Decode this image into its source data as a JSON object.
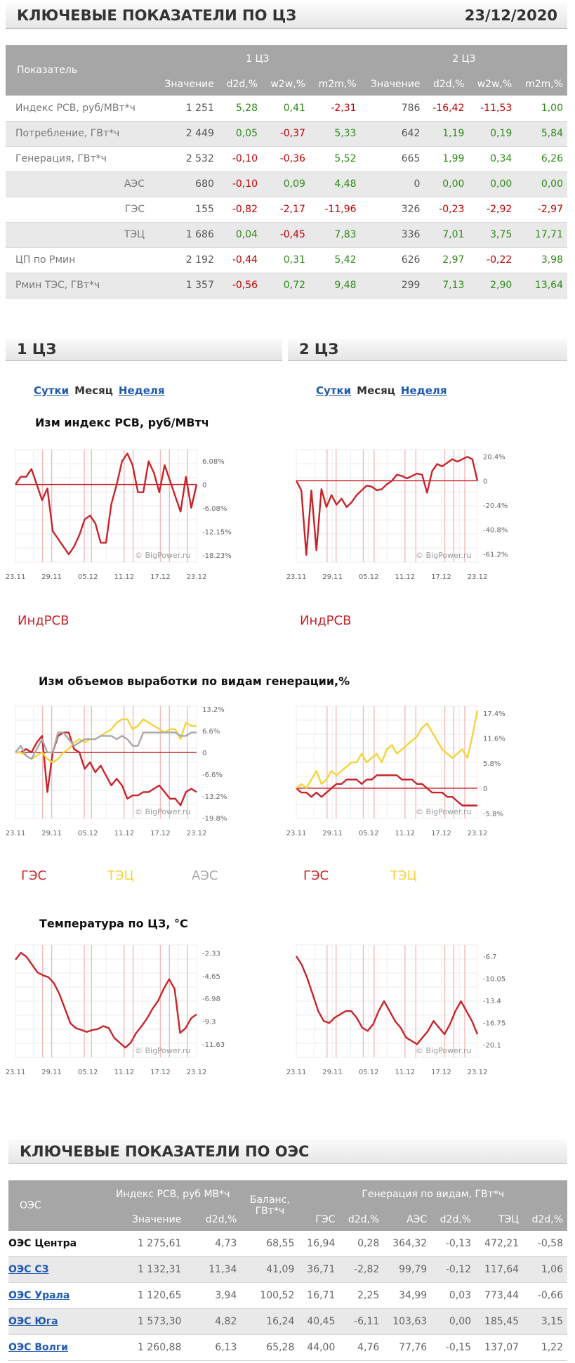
{
  "header": {
    "title": "КЛЮЧЕВЫЕ ПОКАЗАТЕЛИ ПО ЦЗ",
    "date": "23/12/2020"
  },
  "key_table": {
    "col_indicator": "Показатель",
    "zone1": "1 ЦЗ",
    "zone2": "2 ЦЗ",
    "subcols": [
      "Значение",
      "d2d,%",
      "w2w,%",
      "m2m,%",
      "Значение",
      "d2d,%",
      "w2w,%",
      "m2m,%"
    ],
    "rows": [
      {
        "name": "Индекс РСВ, руб/МВт*ч",
        "sub": false,
        "v": [
          "1 251",
          "5,28",
          "0,41",
          "-2,31",
          "786",
          "-16,42",
          "-11,53",
          "1,00"
        ]
      },
      {
        "name": "Потребление, ГВт*ч",
        "sub": false,
        "v": [
          "2 449",
          "0,05",
          "-0,37",
          "5,33",
          "642",
          "1,19",
          "0,19",
          "5,84"
        ]
      },
      {
        "name": "Генерация, ГВт*ч",
        "sub": false,
        "v": [
          "2 532",
          "-0,10",
          "-0,36",
          "5,52",
          "665",
          "1,99",
          "0,34",
          "6,26"
        ]
      },
      {
        "name": "АЭС",
        "sub": true,
        "v": [
          "680",
          "-0,10",
          "0,09",
          "4,48",
          "0",
          "0,00",
          "0,00",
          "0,00"
        ]
      },
      {
        "name": "ГЭС",
        "sub": true,
        "v": [
          "155",
          "-0,82",
          "-2,17",
          "-11,96",
          "326",
          "-0,23",
          "-2,92",
          "-2,97"
        ]
      },
      {
        "name": "ТЭЦ",
        "sub": true,
        "v": [
          "1 686",
          "0,04",
          "-0,45",
          "7,83",
          "336",
          "7,01",
          "3,75",
          "17,71"
        ]
      },
      {
        "name": "ЦП по Рмин",
        "sub": false,
        "v": [
          "2 192",
          "-0,44",
          "0,31",
          "5,42",
          "626",
          "2,97",
          "-0,22",
          "3,98"
        ]
      },
      {
        "name": "Рмин ТЭС, ГВт*ч",
        "sub": false,
        "v": [
          "1 357",
          "-0,56",
          "0,72",
          "9,48",
          "299",
          "7,13",
          "2,90",
          "13,64"
        ]
      }
    ]
  },
  "sections": {
    "z1": "1 ЦЗ",
    "z2": "2 ЦЗ"
  },
  "tabs": {
    "day": "Сутки",
    "month": "Месяц",
    "week": "Неделя"
  },
  "chart_titles": {
    "rsv": "Изм индекс РСВ, руб/МВтч",
    "gen": "Изм объемов выработки по видам генерации,%",
    "temp": "Температура по ЦЗ, °C"
  },
  "watermark": "© BigPower.ru",
  "colors": {
    "red": "#c8232a",
    "yellow": "#f5d33a",
    "gray": "#a8a8a8",
    "vline": "#f2b6b6"
  },
  "legends": {
    "rsv": "ИндРСВ",
    "ges": "ГЭС",
    "tec": "ТЭЦ",
    "aes": "АЭС"
  },
  "chart_data": [
    {
      "id": "rsv1",
      "type": "line",
      "x_ticks": [
        "23.11",
        "29.11",
        "05.12",
        "11.12",
        "17.12",
        "23.12"
      ],
      "y_ticks": [
        "6.08%",
        "0",
        "-6.08%",
        "-12.15%",
        "-18.23%"
      ],
      "ylim": [
        -20,
        9
      ],
      "series": [
        {
          "name": "ИндРСВ",
          "values": [
            0,
            2,
            2,
            4,
            0,
            -4,
            -1,
            -12,
            -14,
            -16,
            -18,
            -16,
            -13,
            -9,
            -8,
            -10,
            -15,
            -15,
            -5,
            0,
            6,
            8,
            5,
            -2,
            -2,
            6,
            3,
            -2,
            5,
            1,
            -3,
            -7,
            2,
            -6,
            0
          ]
        }
      ]
    },
    {
      "id": "rsv2",
      "type": "line",
      "x_ticks": [
        "23.11",
        "29.11",
        "05.12",
        "11.12",
        "17.12",
        "23.12"
      ],
      "y_ticks": [
        "20.4%",
        "0",
        "-20.4%",
        "-40.8%",
        "-61.2%"
      ],
      "ylim": [
        -68,
        26
      ],
      "series": [
        {
          "name": "ИндРСВ",
          "values": [
            0,
            -8,
            -62,
            -8,
            -58,
            -7,
            -22,
            -12,
            -20,
            -15,
            -22,
            -18,
            -12,
            -8,
            -4,
            -5,
            -8,
            -7,
            -3,
            0,
            5,
            4,
            2,
            4,
            6,
            5,
            -10,
            8,
            14,
            12,
            15,
            18,
            16,
            18,
            20,
            18,
            0
          ]
        }
      ]
    },
    {
      "id": "gen1",
      "type": "line",
      "x_ticks": [
        "23.11",
        "29.11",
        "05.12",
        "11.12",
        "17.12",
        "23.12"
      ],
      "y_ticks": [
        "13.2%",
        "6.6%",
        "0",
        "-6.6%",
        "-13.2%",
        "-19.8%"
      ],
      "ylim": [
        -20,
        14
      ],
      "series": [
        {
          "name": "ГЭС",
          "values": [
            0,
            0,
            1,
            0,
            3,
            5,
            -12,
            0,
            5,
            6,
            6,
            1,
            0,
            -5,
            -3,
            -6,
            -4,
            -7,
            -10,
            -8,
            -10,
            -14,
            -13,
            -13,
            -12,
            -12,
            -11,
            -10,
            -12,
            -14,
            -14,
            -16,
            -12,
            -11,
            -12
          ]
        },
        {
          "name": "ТЭЦ",
          "values": [
            0,
            0,
            -1,
            -2,
            -1,
            0,
            -2,
            -3,
            -2,
            0,
            1,
            3,
            4,
            3,
            4,
            4,
            5,
            6,
            7,
            9,
            10,
            10,
            7,
            8,
            10,
            9,
            8,
            7,
            6,
            7,
            7,
            4,
            9,
            8,
            8
          ]
        },
        {
          "name": "АЭС",
          "values": [
            0,
            2,
            -1,
            -2,
            1,
            4,
            0,
            0,
            6,
            6,
            4,
            2,
            3,
            4,
            4,
            4,
            5,
            5,
            5,
            4,
            5,
            4,
            2,
            2,
            6,
            6,
            6,
            6,
            6,
            6,
            6,
            5,
            5,
            6,
            6
          ]
        }
      ]
    },
    {
      "id": "gen2",
      "type": "line",
      "x_ticks": [
        "23.11",
        "29.11",
        "05.12",
        "11.12",
        "17.12",
        "23.12"
      ],
      "y_ticks": [
        "17.4%",
        "11.6%",
        "5.8%",
        "0",
        "-5.8%"
      ],
      "ylim": [
        -7,
        19
      ],
      "series": [
        {
          "name": "ГЭС",
          "values": [
            0,
            -1,
            -1,
            -2,
            -1,
            -2,
            -1,
            0,
            1,
            1,
            2,
            2,
            2,
            1,
            2,
            2,
            3,
            3,
            3,
            3,
            3,
            2,
            2,
            2,
            1,
            1,
            0,
            -1,
            -1,
            -1,
            -2,
            -2,
            -3,
            -4,
            -4,
            -4,
            -4
          ]
        },
        {
          "name": "ТЭЦ",
          "values": [
            0,
            1,
            0,
            2,
            4,
            1,
            2,
            4,
            3,
            4,
            5,
            6,
            6,
            8,
            6,
            7,
            8,
            6,
            9,
            10,
            8,
            9,
            10,
            11,
            12,
            14,
            15,
            13,
            11,
            9,
            8,
            7,
            8,
            9,
            7,
            12,
            18
          ]
        }
      ]
    },
    {
      "id": "temp1",
      "type": "line",
      "x_ticks": [
        "23.11",
        "29.11",
        "05.12",
        "11.12",
        "17.12",
        "23.12"
      ],
      "y_ticks": [
        "-2.33",
        "-4.65",
        "-6.98",
        "-9.3",
        "-11.63"
      ],
      "ylim": [
        -13,
        -1.5
      ],
      "series": [
        {
          "name": "Температура",
          "values": [
            -3,
            -2.3,
            -2.7,
            -3.5,
            -4.3,
            -4.6,
            -4.8,
            -5.4,
            -6.5,
            -8,
            -9.5,
            -10,
            -10.2,
            -10.4,
            -10.2,
            -10.1,
            -9.8,
            -10,
            -11,
            -11.5,
            -12,
            -11.5,
            -10.5,
            -9.8,
            -9,
            -8,
            -7.2,
            -6,
            -5,
            -6,
            -10.5,
            -10,
            -9,
            -8.6
          ]
        }
      ]
    },
    {
      "id": "temp2",
      "type": "line",
      "x_ticks": [
        "23.11",
        "29.11",
        "05.12",
        "11.12",
        "17.12",
        "23.12"
      ],
      "y_ticks": [
        "-6.7",
        "-10.05",
        "-13.4",
        "-16.75",
        "-20.1"
      ],
      "ylim": [
        -22,
        -5
      ],
      "series": [
        {
          "name": "Температура",
          "values": [
            -6.7,
            -8,
            -10,
            -12.5,
            -15,
            -16.5,
            -16.8,
            -16,
            -15.5,
            -15,
            -15,
            -16,
            -17.5,
            -18,
            -17,
            -15,
            -13.5,
            -15,
            -16.5,
            -17.5,
            -19,
            -19.5,
            -20,
            -19,
            -18,
            -16.5,
            -17.5,
            -18.5,
            -17,
            -15,
            -13.5,
            -15,
            -16.5,
            -18.5
          ]
        }
      ]
    }
  ],
  "oes": {
    "title": "КЛЮЧЕВЫЕ ПОКАЗАТЕЛИ ПО ОЭС",
    "headers": {
      "oes": "ОЭС",
      "rsv": "Индекс РСВ, руб МВ*ч",
      "balance": "Баланс, ГВт*ч",
      "gen": "Генерация по видам, ГВт*ч",
      "value": "Значение",
      "d2d": "d2d,%",
      "ges": "ГЭС",
      "aes": "АЭС",
      "tec": "ТЭЦ"
    },
    "rows": [
      {
        "name": "ОЭС Центра",
        "current": true,
        "v": [
          "1 275,61",
          "4,73",
          "68,55",
          "16,94",
          "0,28",
          "364,32",
          "-0,13",
          "472,21",
          "-0,58"
        ]
      },
      {
        "name": "ОЭС СЗ",
        "current": false,
        "v": [
          "1 132,31",
          "11,34",
          "41,09",
          "36,71",
          "-2,82",
          "99,79",
          "-0,12",
          "117,64",
          "1,06"
        ]
      },
      {
        "name": "ОЭС Урала",
        "current": false,
        "v": [
          "1 120,65",
          "3,94",
          "100,52",
          "16,71",
          "2,25",
          "34,99",
          "0,03",
          "773,44",
          "-0,66"
        ]
      },
      {
        "name": "ОЭС Юга",
        "current": false,
        "v": [
          "1 573,30",
          "4,82",
          "16,24",
          "40,45",
          "-6,11",
          "103,63",
          "0,00",
          "185,45",
          "3,15"
        ]
      },
      {
        "name": "ОЭС Волги",
        "current": false,
        "v": [
          "1 260,88",
          "6,13",
          "65,28",
          "44,00",
          "4,76",
          "77,76",
          "-0,15",
          "137,07",
          "1,22"
        ]
      }
    ]
  }
}
